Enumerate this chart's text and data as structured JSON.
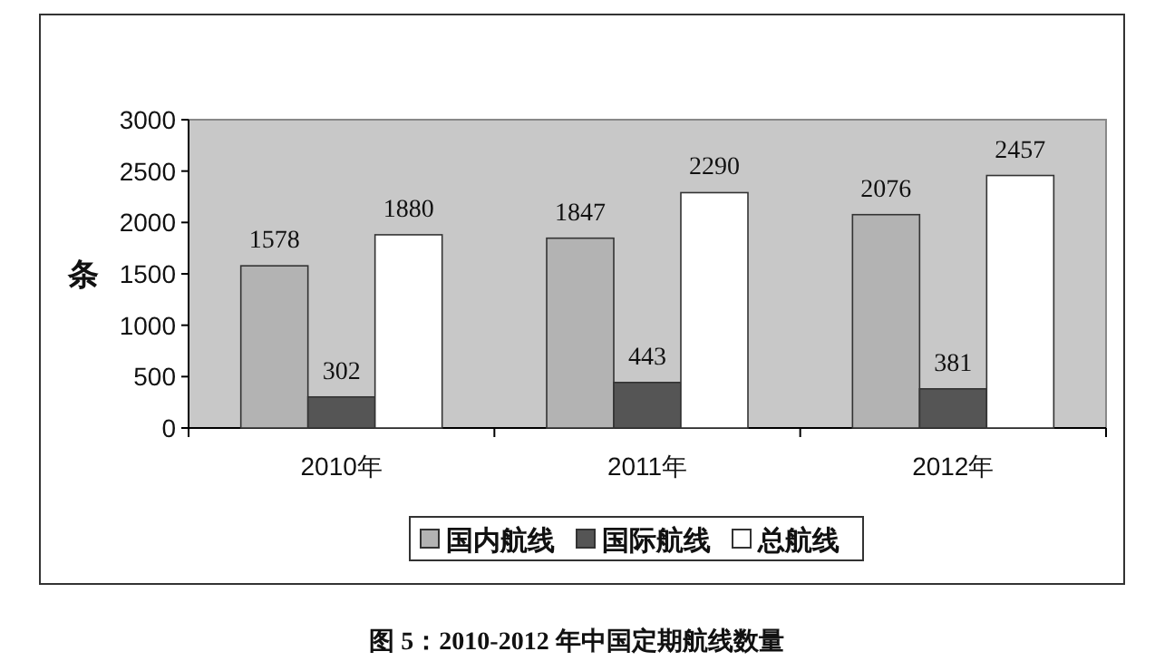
{
  "chart_data": {
    "type": "bar",
    "categories": [
      "2010年",
      "2011年",
      "2012年"
    ],
    "series": [
      {
        "name": "国内航线",
        "color": "#b3b3b3",
        "values": [
          1578,
          1847,
          2076
        ]
      },
      {
        "name": "国际航线",
        "color": "#555555",
        "values": [
          302,
          443,
          381
        ]
      },
      {
        "name": "总航线",
        "color": "#ffffff",
        "values": [
          1880,
          2290,
          2457
        ]
      }
    ],
    "ylabel": "条",
    "ylim": [
      0,
      3000
    ],
    "yticks": [
      0,
      500,
      1000,
      1500,
      2000,
      2500,
      3000
    ],
    "data_labels": true,
    "legend": "bottom",
    "annotations": [
      "图 5：2010-2012 年中国定期航线数量"
    ]
  }
}
